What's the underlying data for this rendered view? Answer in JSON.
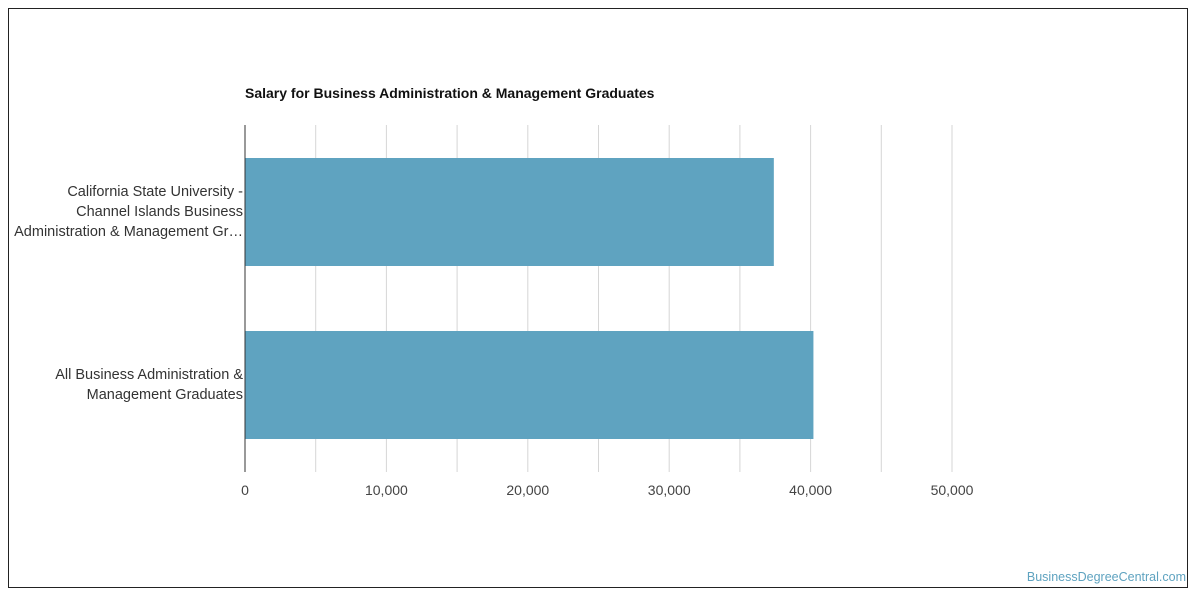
{
  "chart_data": {
    "type": "bar",
    "orientation": "horizontal",
    "title": "Salary for Business Administration & Management Graduates",
    "categories": [
      [
        "California State University -",
        "Channel Islands Business",
        "Administration & Management Gr…"
      ],
      [
        "All Business Administration &",
        "Management Graduates"
      ]
    ],
    "values": [
      37400,
      40200
    ],
    "xlim": [
      0,
      50000
    ],
    "x_ticks": [
      "0",
      "10,000",
      "20,000",
      "30,000",
      "40,000",
      "50,000"
    ],
    "x_tick_values": [
      0,
      10000,
      20000,
      30000,
      40000,
      50000
    ],
    "grid": true,
    "bar_color": "#5fa3c0",
    "grid_color": "#d6d6d6"
  },
  "watermark": "BusinessDegreeCentral.com"
}
